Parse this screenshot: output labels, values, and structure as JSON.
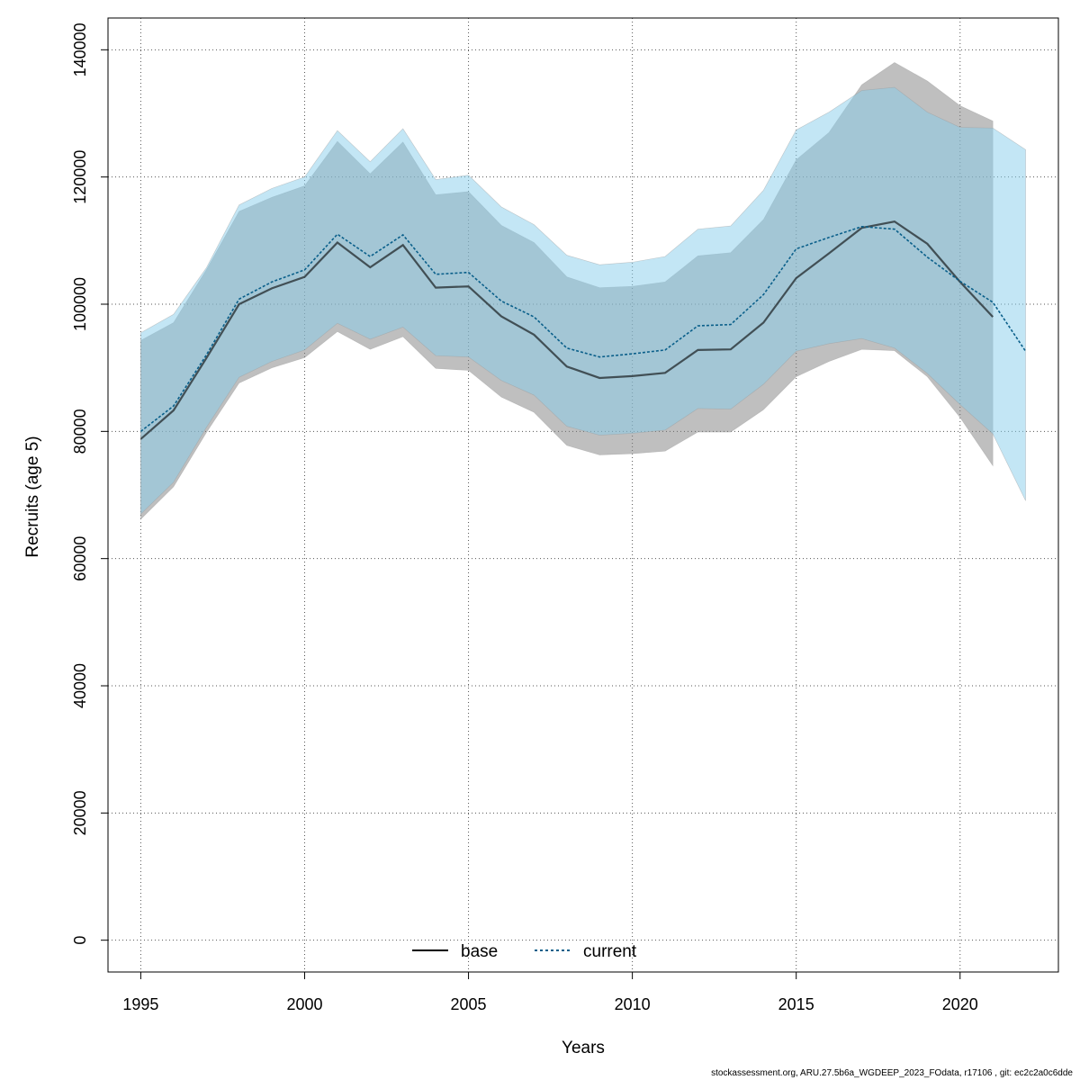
{
  "chart_data": {
    "type": "line",
    "xlabel": "Years",
    "ylabel": "Recruits (age 5)",
    "xlim": [
      1994,
      2023
    ],
    "ylim": [
      -5000,
      145000
    ],
    "x_ticks": [
      1995,
      2000,
      2005,
      2010,
      2015,
      2020
    ],
    "y_ticks": [
      0,
      20000,
      40000,
      60000,
      80000,
      100000,
      120000,
      140000
    ],
    "grid": true,
    "legend_position": "bottom-center",
    "series": [
      {
        "name": "base",
        "line_style": "solid",
        "line_color": "#000000",
        "band_color": "#808080",
        "x": [
          1995,
          1996,
          1997,
          1998,
          1999,
          2000,
          2001,
          2002,
          2003,
          2004,
          2005,
          2006,
          2007,
          2008,
          2009,
          2010,
          2011,
          2012,
          2013,
          2014,
          2015,
          2016,
          2017,
          2018,
          2019,
          2020,
          2021
        ],
        "values": [
          78800,
          83300,
          91500,
          100000,
          102500,
          104300,
          109700,
          105800,
          109300,
          102600,
          102800,
          98100,
          95200,
          90200,
          88400,
          88700,
          89200,
          92800,
          92900,
          97100,
          104100,
          108000,
          112000,
          113000,
          109500,
          103500,
          98000
        ],
        "lower": [
          66200,
          71300,
          79800,
          87600,
          90000,
          91600,
          95700,
          92900,
          94900,
          89900,
          89600,
          85400,
          83000,
          77800,
          76300,
          76500,
          76900,
          79900,
          79900,
          83400,
          88600,
          91000,
          92900,
          92700,
          88600,
          82200,
          74600
        ],
        "upper": [
          94300,
          97100,
          105400,
          114600,
          116800,
          118600,
          125600,
          120500,
          125500,
          117200,
          117700,
          112400,
          109700,
          104300,
          102600,
          102800,
          103500,
          107600,
          108100,
          113300,
          122700,
          127000,
          134500,
          138000,
          135100,
          131200,
          128800
        ]
      },
      {
        "name": "current",
        "line_style": "dotted",
        "line_color": "#0a5f8a",
        "band_color": "#87ceeb",
        "x": [
          1995,
          1996,
          1997,
          1998,
          1999,
          2000,
          2001,
          2002,
          2003,
          2004,
          2005,
          2006,
          2007,
          2008,
          2009,
          2010,
          2011,
          2012,
          2013,
          2014,
          2015,
          2016,
          2017,
          2018,
          2019,
          2020,
          2021,
          2022
        ],
        "values": [
          80000,
          84000,
          92000,
          100800,
          103500,
          105400,
          111000,
          107500,
          110900,
          104700,
          105000,
          100500,
          98000,
          93100,
          91700,
          92200,
          92800,
          96600,
          96800,
          101500,
          108700,
          110500,
          112200,
          111800,
          107400,
          103600,
          100300,
          92600
        ],
        "lower": [
          67000,
          72000,
          80600,
          88500,
          91000,
          92800,
          97000,
          94500,
          96400,
          91900,
          91700,
          88000,
          85700,
          80800,
          79400,
          79700,
          80200,
          83600,
          83500,
          87400,
          92600,
          93800,
          94600,
          93100,
          89100,
          84200,
          79600,
          69100
        ],
        "upper": [
          95500,
          98400,
          105700,
          115600,
          118200,
          120000,
          127300,
          122400,
          127600,
          119600,
          120300,
          115300,
          112500,
          107700,
          106200,
          106600,
          107500,
          111800,
          112300,
          117900,
          127400,
          130200,
          133600,
          134100,
          130200,
          127800,
          127700,
          124300
        ]
      }
    ]
  },
  "footer": "stockassessment.org, ARU.27.5b6a_WGDEEP_2023_FOdata, r17106 , git: ec2c2a0c6dde"
}
